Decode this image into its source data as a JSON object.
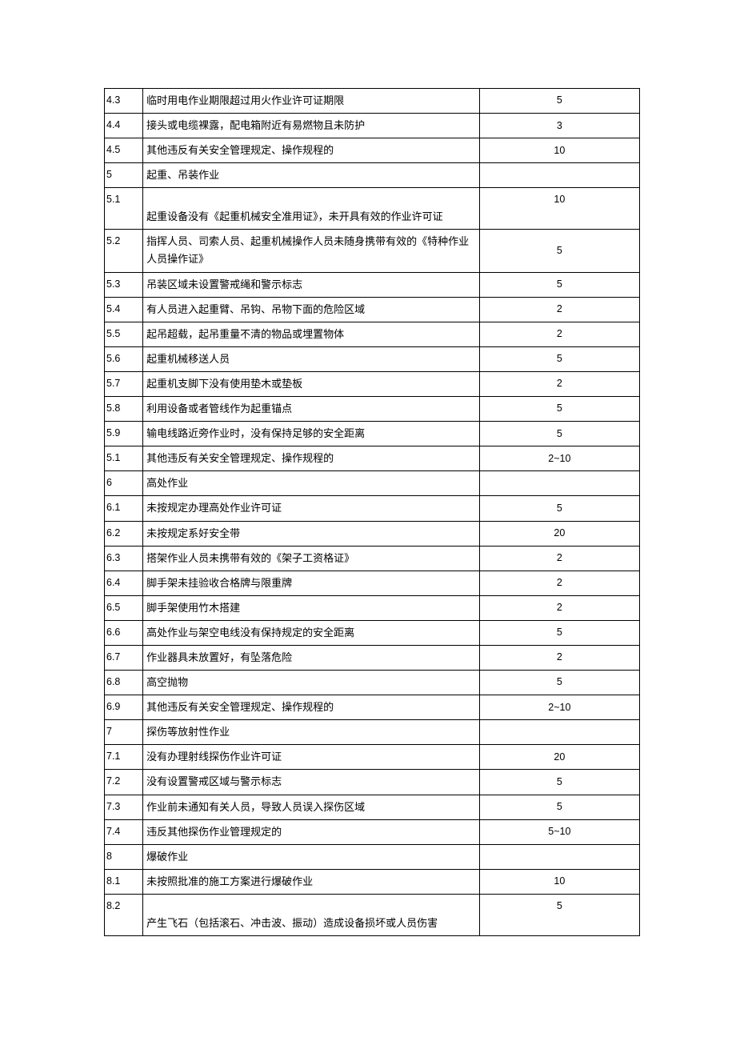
{
  "table": {
    "col_widths": {
      "num": 48,
      "desc": 420,
      "val": 200
    },
    "font_size": 13,
    "border_color": "#000000",
    "background_color": "#ffffff",
    "text_color": "#000000",
    "rows": [
      {
        "num": "4.3",
        "desc": "临时用电作业期限超过用火作业许可证期限",
        "val": "5"
      },
      {
        "num": "4.4",
        "desc": "接头或电缆裸露，配电箱附近有易燃物且未防护",
        "val": "3"
      },
      {
        "num": "4.5",
        "desc": "其他违反有关安全管理规定、操作规程的",
        "val": "10"
      },
      {
        "num": "5",
        "desc": "起重、吊装作业",
        "val": ""
      },
      {
        "num": "5.1",
        "desc": "起重设备没有《起重机械安全准用证》，未开具有效的作业许可证",
        "val": "10",
        "tall": true
      },
      {
        "num": "5.2",
        "desc": "指挥人员、司索人员、起重机械操作人员未随身携带有效的《特种作业人员操作证》",
        "val": "5"
      },
      {
        "num": "5.3",
        "desc": "吊装区域未设置警戒绳和警示标志",
        "val": "5"
      },
      {
        "num": "5.4",
        "desc": "有人员进入起重臂、吊钩、吊物下面的危险区域",
        "val": "2"
      },
      {
        "num": "5.5",
        "desc": "起吊超载，起吊重量不清的物品或埋置物体",
        "val": "2"
      },
      {
        "num": "5.6",
        "desc": "起重机械移送人员",
        "val": "5"
      },
      {
        "num": "5.7",
        "desc": "起重机支脚下没有使用垫木或垫板",
        "val": "2"
      },
      {
        "num": "5.8",
        "desc": "利用设备或者管线作为起重锚点",
        "val": "5"
      },
      {
        "num": "5.9",
        "desc": "输电线路近旁作业时，没有保持足够的安全距离",
        "val": "5"
      },
      {
        "num": "5.1",
        "desc": "其他违反有关安全管理规定、操作规程的",
        "val": "2~10"
      },
      {
        "num": "6",
        "desc": "高处作业",
        "val": ""
      },
      {
        "num": "6.1",
        "desc": "未按规定办理高处作业许可证",
        "val": "5"
      },
      {
        "num": "6.2",
        "desc": "未按规定系好安全带",
        "val": "20"
      },
      {
        "num": "6.3",
        "desc": "搭架作业人员未携带有效的《架子工资格证》",
        "val": "2"
      },
      {
        "num": "6.4",
        "desc": "脚手架未挂验收合格牌与限重牌",
        "val": "2"
      },
      {
        "num": "6.5",
        "desc": "脚手架使用竹木搭建",
        "val": "2"
      },
      {
        "num": "6.6",
        "desc": "高处作业与架空电线没有保持规定的安全距离",
        "val": "5"
      },
      {
        "num": "6.7",
        "desc": "作业器具未放置好，有坠落危险",
        "val": "2"
      },
      {
        "num": "6.8",
        "desc": "高空抛物",
        "val": "5"
      },
      {
        "num": "6.9",
        "desc": "其他违反有关安全管理规定、操作规程的",
        "val": "2~10"
      },
      {
        "num": "7",
        "desc": "探伤等放射性作业",
        "val": ""
      },
      {
        "num": "7.1",
        "desc": "没有办理射线探伤作业许可证",
        "val": "20"
      },
      {
        "num": "7.2",
        "desc": "没有设置警戒区域与警示标志",
        "val": "5"
      },
      {
        "num": "7.3",
        "desc": "作业前未通知有关人员，导致人员误入探伤区域",
        "val": "5"
      },
      {
        "num": "7.4",
        "desc": "违反其他探伤作业管理规定的",
        "val": "5~10"
      },
      {
        "num": "8",
        "desc": "爆破作业",
        "val": ""
      },
      {
        "num": "8.1",
        "desc": "未按照批准的施工方案进行爆破作业",
        "val": "10"
      },
      {
        "num": "8.2",
        "desc": "产生飞石（包括滚石、冲击波、振动）造成设备损坏或人员伤害",
        "val": "5",
        "tall": true
      }
    ]
  }
}
